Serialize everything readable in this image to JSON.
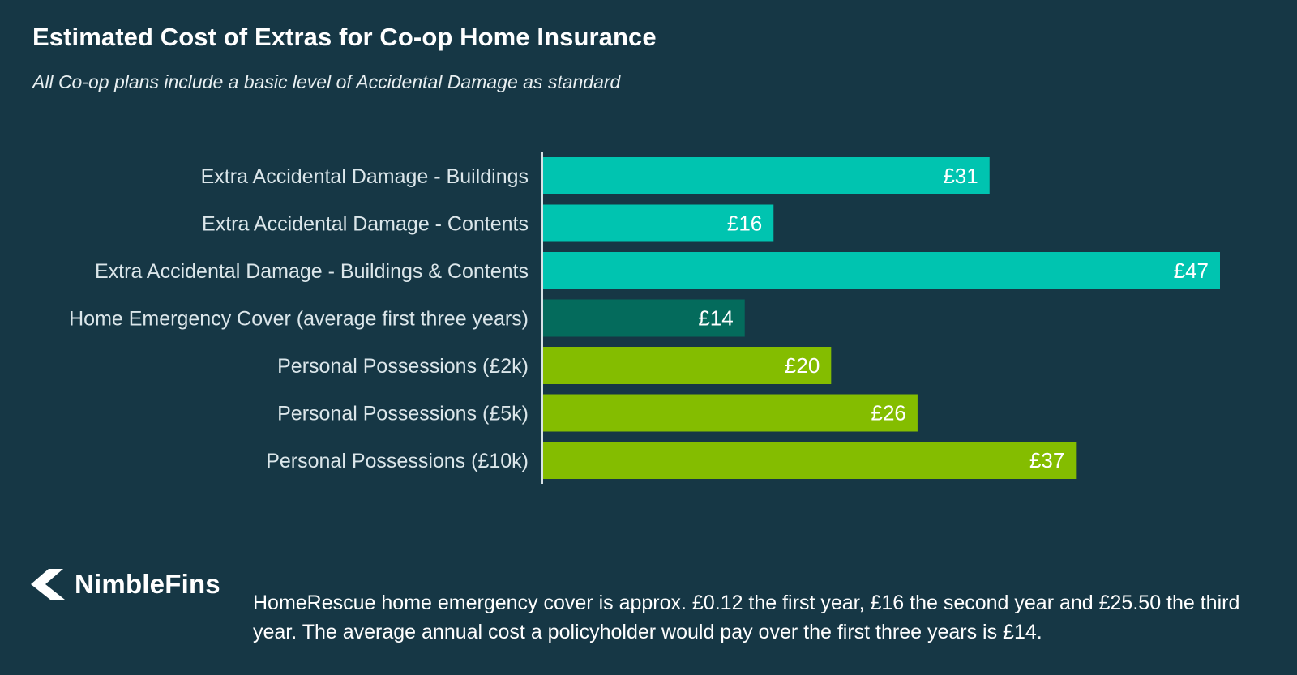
{
  "header": {
    "title": "Estimated Cost of Extras for Co-op Home Insurance",
    "subtitle": "All Co-op plans include a basic level of Accidental Damage as standard"
  },
  "chart_data": {
    "type": "bar",
    "orientation": "horizontal",
    "categories": [
      "Extra Accidental Damage - Buildings",
      "Extra Accidental Damage - Contents",
      "Extra Accidental Damage - Buildings & Contents",
      "Home Emergency Cover (average first three years)",
      "Personal Possessions (£2k)",
      "Personal Possessions (£5k)",
      "Personal Possessions (£10k)"
    ],
    "values": [
      31,
      16,
      47,
      14,
      20,
      26,
      37
    ],
    "value_labels": [
      "£31",
      "£16",
      "£47",
      "£14",
      "£20",
      "£26",
      "£37"
    ],
    "bar_colors": [
      "#00c4b0",
      "#00c4b0",
      "#00c4b0",
      "#046b5c",
      "#84bd00",
      "#84bd00",
      "#84bd00"
    ],
    "xlim": [
      0,
      47
    ],
    "grid": false,
    "legend": "none"
  },
  "branding": {
    "logo_text": "NimbleFins"
  },
  "footnote": "HomeRescue home emergency cover is approx. £0.12 the first year, £16 the second year and £25.50 the third year. The average annual cost a policyholder would pay over the first three years is £14."
}
